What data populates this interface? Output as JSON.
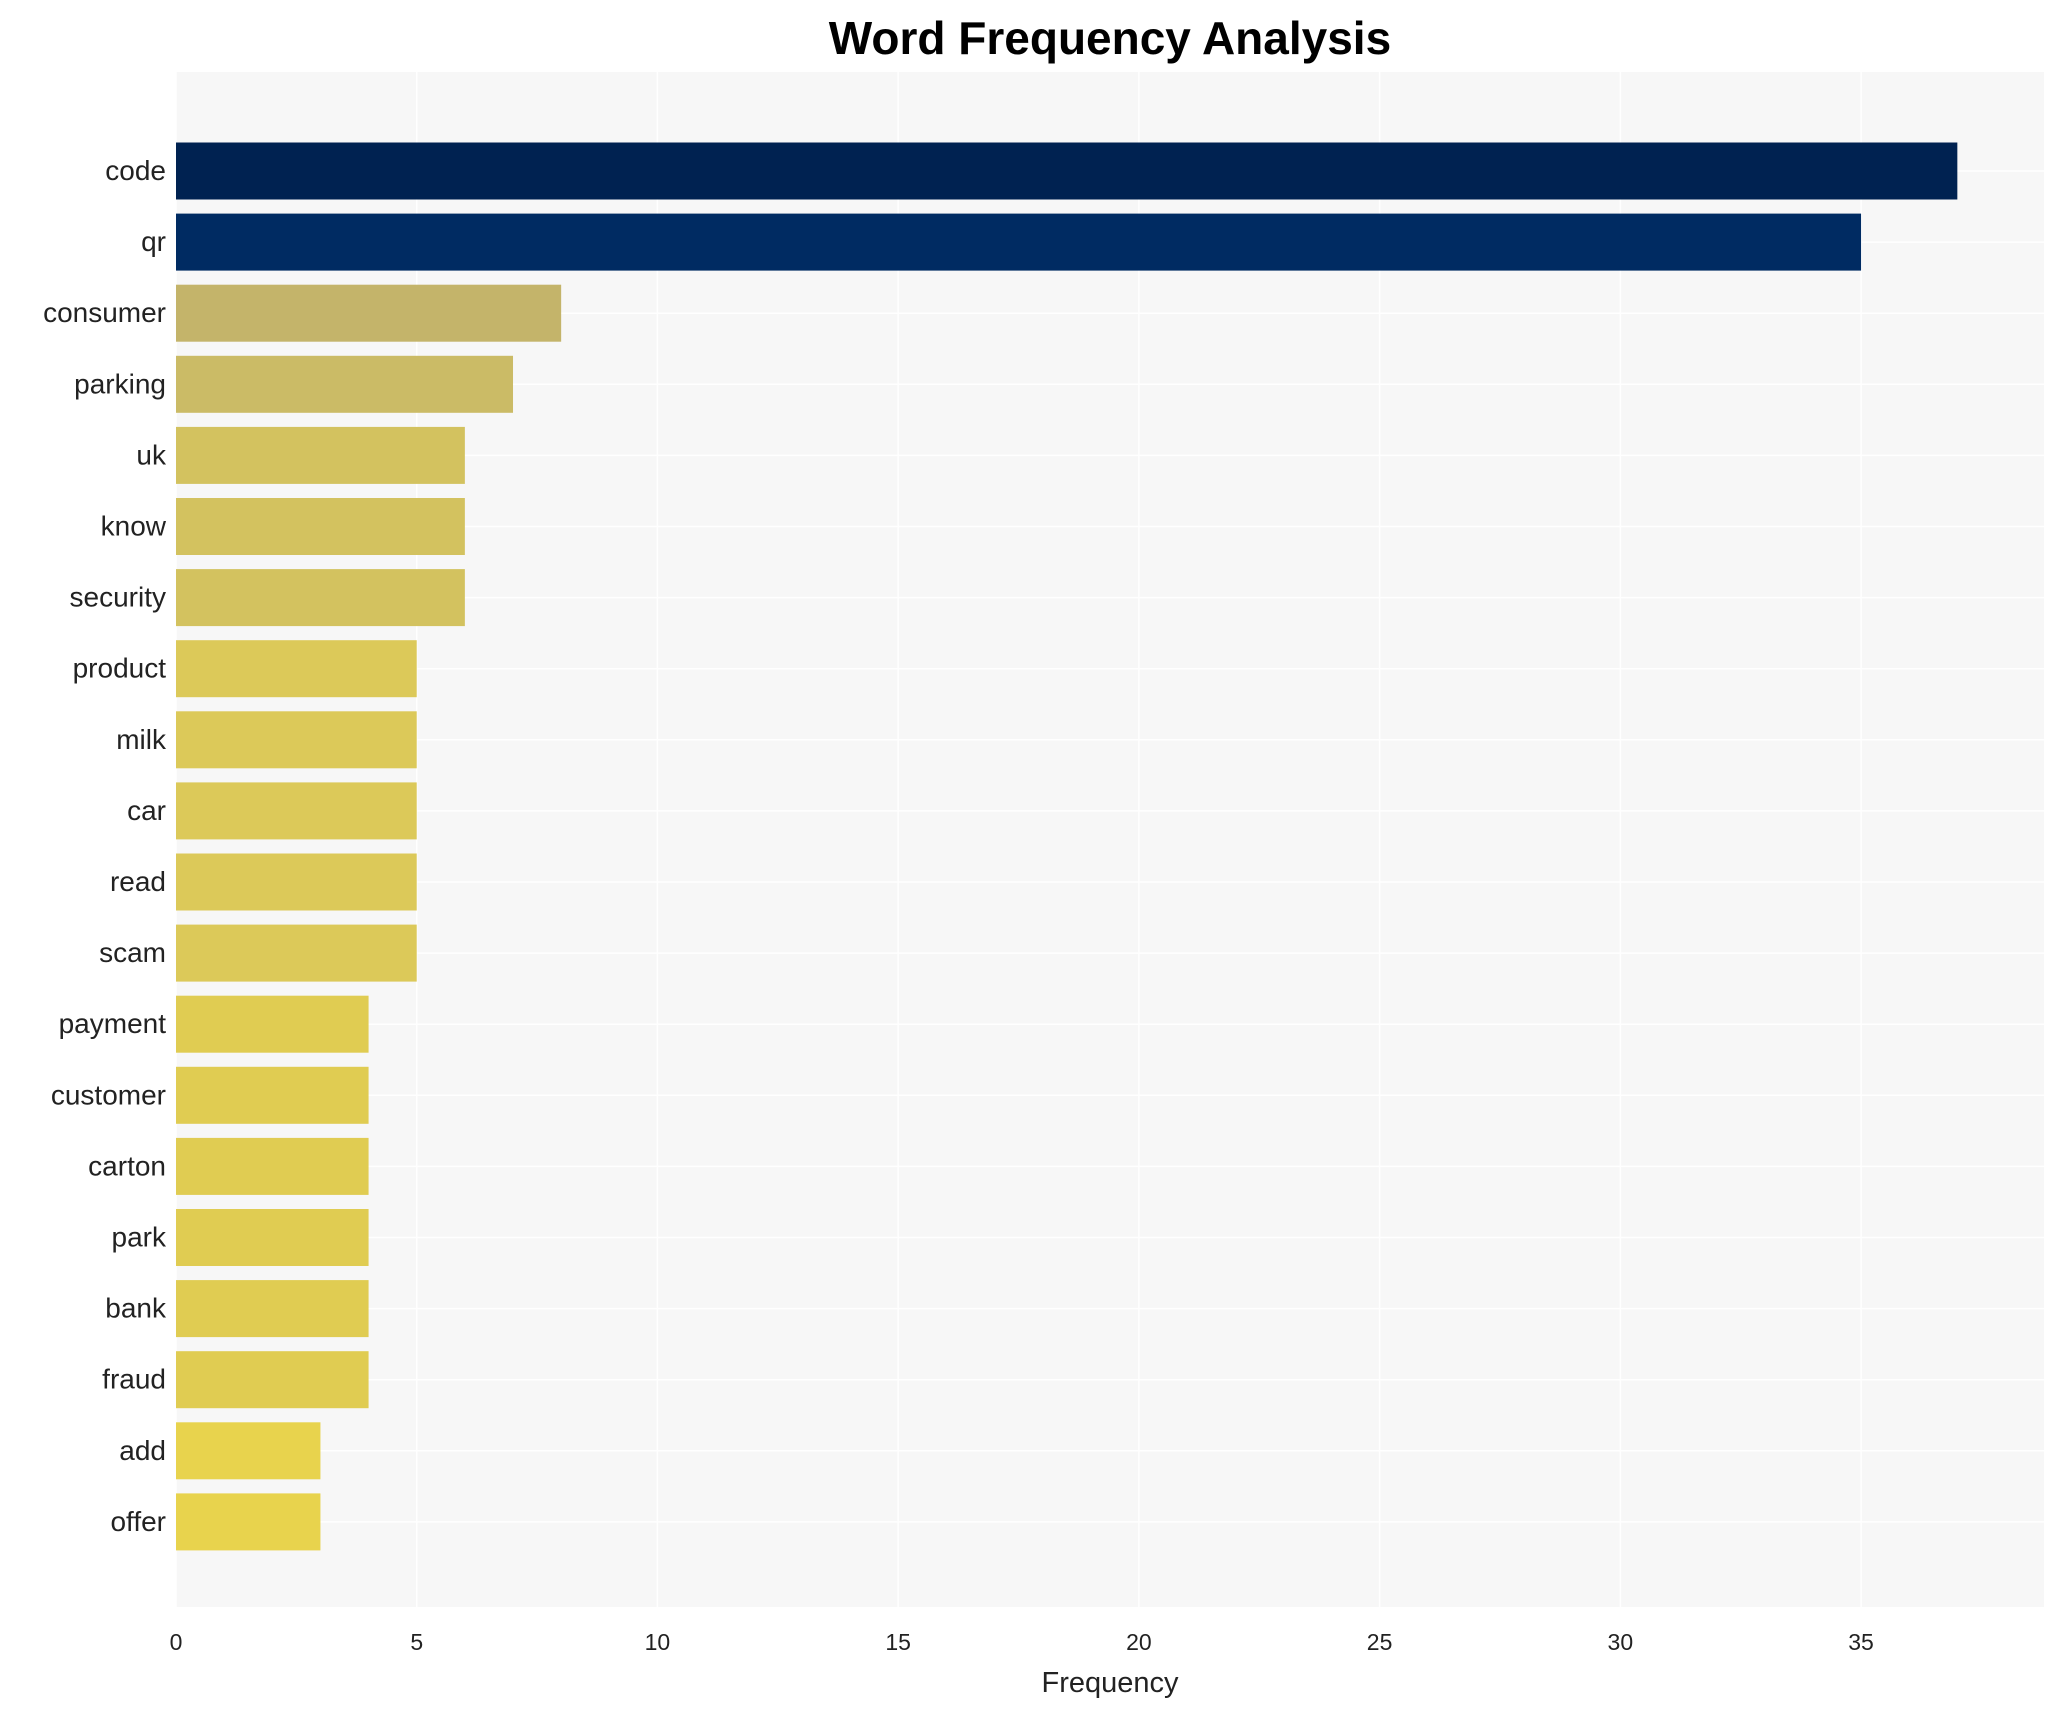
{
  "chart_data": {
    "type": "bar",
    "orientation": "horizontal",
    "title": "Word Frequency Analysis",
    "xlabel": "Frequency",
    "ylabel": "",
    "categories": [
      "code",
      "qr",
      "consumer",
      "parking",
      "uk",
      "know",
      "security",
      "product",
      "milk",
      "car",
      "read",
      "scam",
      "payment",
      "customer",
      "carton",
      "park",
      "bank",
      "fraud",
      "add",
      "offer"
    ],
    "values": [
      37,
      35,
      8,
      7,
      6,
      6,
      6,
      5,
      5,
      5,
      5,
      5,
      4,
      4,
      4,
      4,
      4,
      4,
      3,
      3
    ],
    "colors": [
      "#002251",
      "#002b62",
      "#c4b46a",
      "#cbbb66",
      "#d3c25f",
      "#d3c25f",
      "#d3c25f",
      "#dcc959",
      "#dcc959",
      "#dcc959",
      "#dcc959",
      "#dcc959",
      "#e0cc52",
      "#e0cc52",
      "#e0cc52",
      "#e0cc52",
      "#e0cc52",
      "#e0cc52",
      "#e8d34d",
      "#e8d34d"
    ],
    "xticks": [
      0,
      5,
      10,
      15,
      20,
      25,
      30,
      35
    ],
    "xlim": [
      0,
      38.8
    ],
    "grid": true,
    "background": "#f7f7f7"
  }
}
